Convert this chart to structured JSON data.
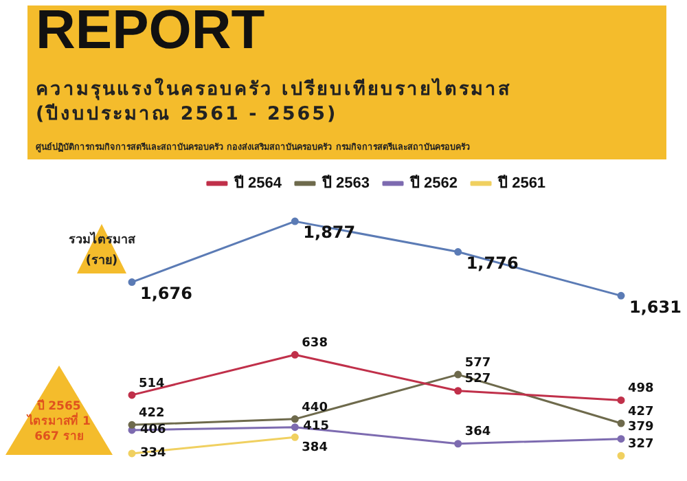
{
  "chart_data": [
    {
      "type": "line",
      "title": "REPORT",
      "subtitle": "ความรุนแรงในครอบครัว เปรียบเทียบรายไตรมาส (ปีงบประมาณ 2561 - 2565)",
      "annotations": [
        "ศูนย์ปฏิบัติการกรมกิจการสตรีและสถาบันครอบครัว กองส่งเสริมสถาบันครอบครัว กรมกิจการสตรีและสถาบันครอบครัว",
        "รวมไตรมาส (ราย)"
      ],
      "categories": [
        null,
        null,
        null,
        null
      ],
      "series": [
        {
          "color": "#5b7bb5",
          "values": [
            1676,
            1877,
            1776,
            1631
          ],
          "value_labels": [
            "1,676",
            "1,877",
            "1,776",
            "1,631"
          ]
        }
      ],
      "tick_labels": false,
      "marker": "circle"
    },
    {
      "type": "line",
      "annotations": [
        "ปี 2565 ไตรมาสที่ 1 667 ราย"
      ],
      "categories": [
        null,
        null,
        null,
        null
      ],
      "series": [
        {
          "name": "ปี 2564",
          "color": "#c0304a",
          "values": [
            514,
            638,
            527,
            498
          ]
        },
        {
          "name": "ปี 2563",
          "color": "#6e6a4c",
          "values": [
            422,
            440,
            577,
            427
          ]
        },
        {
          "name": "ปี 2562",
          "color": "#7d6bb0",
          "values": [
            406,
            415,
            364,
            379
          ]
        },
        {
          "name": "ปี 2561",
          "color": "#f0d060",
          "values": [
            334,
            384,
            null,
            327
          ]
        }
      ],
      "tick_labels": false,
      "data_labels": true,
      "legend": "top",
      "marker": "circle"
    }
  ]
}
